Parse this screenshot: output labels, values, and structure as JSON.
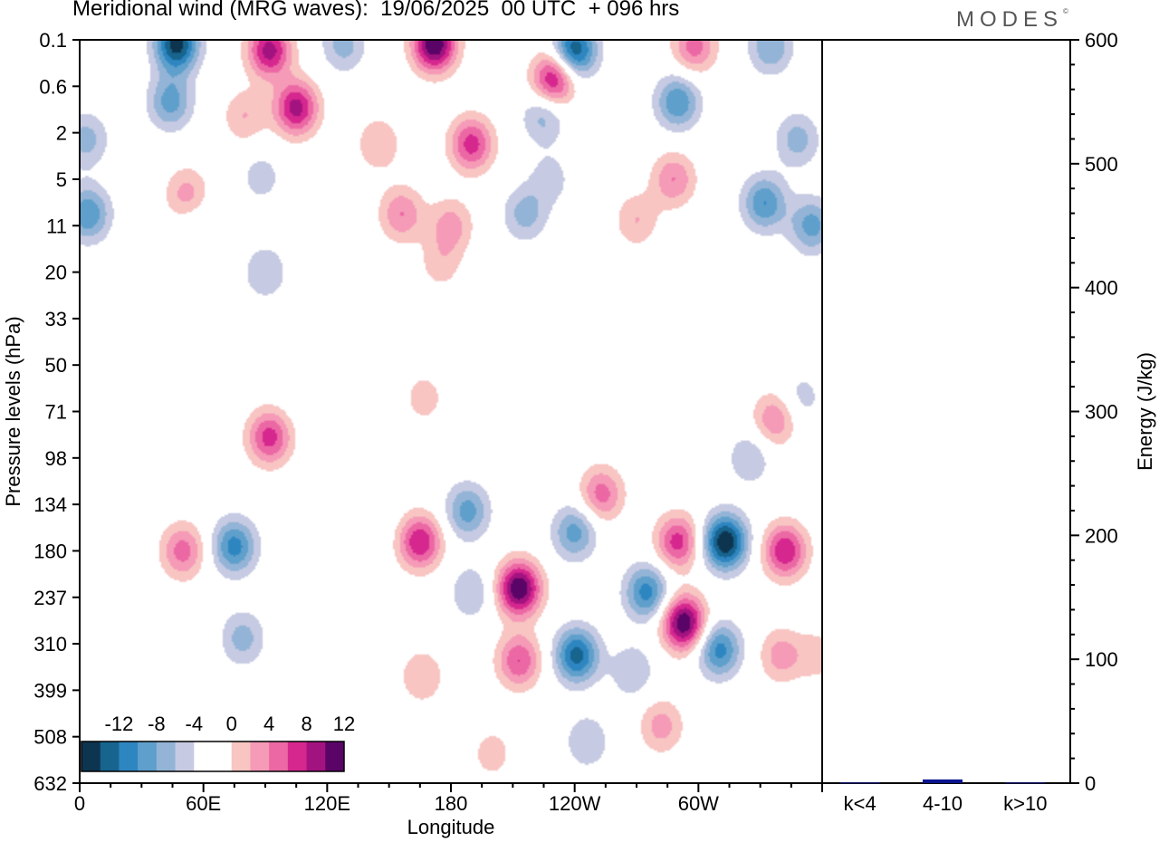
{
  "header": {
    "title": "Meridional wind (MRG waves):  19/06/2025  00 UTC  + 096 hrs",
    "brand": "MODES",
    "brand_mark": "©"
  },
  "chart_data": [
    {
      "type": "heatmap",
      "title": "Meridional wind (MRG waves):  19/06/2025  00 UTC  + 096 hrs",
      "xlabel": "Longitude",
      "ylabel": "Pressure levels (hPa)",
      "x_ticks": [
        "0",
        "60E",
        "120E",
        "180",
        "120W",
        "60W"
      ],
      "x_tick_values": [
        0,
        60,
        120,
        180,
        240,
        300
      ],
      "xlim": [
        0,
        360
      ],
      "y_ticks": [
        "0.1",
        "0.6",
        "2",
        "5",
        "11",
        "20",
        "33",
        "50",
        "71",
        "98",
        "134",
        "180",
        "237",
        "310",
        "399",
        "508",
        "632"
      ],
      "colorbar": {
        "labels": [
          "-12",
          "-8",
          "-4",
          "0",
          "4",
          "8",
          "12"
        ],
        "colors": [
          "#0e3550",
          "#17648f",
          "#2e86c1",
          "#5f9fcc",
          "#93b4d6",
          "#c6cae2",
          "#ffffff",
          "#ffffff",
          "#f8c5c2",
          "#f59ab7",
          "#ec68a4",
          "#d6278f",
          "#a3137f",
          "#5a0467"
        ],
        "location": "lower-left"
      },
      "blobs": [
        {
          "lon": 47,
          "p": 0.12,
          "v": -13
        },
        {
          "lon": 44,
          "p": 0.9,
          "v": -7
        },
        {
          "lon": 3,
          "p": 2.3,
          "v": -5
        },
        {
          "lon": 4,
          "p": 9,
          "v": -8
        },
        {
          "lon": 92,
          "p": 0.15,
          "v": 11
        },
        {
          "lon": 105,
          "p": 1.05,
          "v": 11
        },
        {
          "lon": 80,
          "p": 1.3,
          "v": 4
        },
        {
          "lon": 172,
          "p": 0.12,
          "v": 14
        },
        {
          "lon": 128,
          "p": 0.12,
          "v": -5
        },
        {
          "lon": 190,
          "p": 2.5,
          "v": 9
        },
        {
          "lon": 145,
          "p": 2.5,
          "v": 4
        },
        {
          "lon": 230,
          "p": 0.45,
          "v": 11
        },
        {
          "lon": 240,
          "p": 0.15,
          "v": -12
        },
        {
          "lon": 290,
          "p": 0.9,
          "v": -8
        },
        {
          "lon": 225,
          "p": 1.3,
          "v": -5
        },
        {
          "lon": 298,
          "p": 0.13,
          "v": 7
        },
        {
          "lon": 335,
          "p": 0.13,
          "v": -6
        },
        {
          "lon": 348,
          "p": 2.3,
          "v": -5
        },
        {
          "lon": 288,
          "p": 5,
          "v": 6
        },
        {
          "lon": 332,
          "p": 7.5,
          "v": -8
        },
        {
          "lon": 355,
          "p": 11,
          "v": -7
        },
        {
          "lon": 270,
          "p": 10,
          "v": 4
        },
        {
          "lon": 52,
          "p": 6.5,
          "v": 5
        },
        {
          "lon": 156,
          "p": 9,
          "v": 6
        },
        {
          "lon": 180,
          "p": 11,
          "v": 5
        },
        {
          "lon": 175,
          "p": 18,
          "v": 3
        },
        {
          "lon": 216,
          "p": 9,
          "v": -5
        },
        {
          "lon": 228,
          "p": 5,
          "v": -3
        },
        {
          "lon": 90,
          "p": 20,
          "v": -4
        },
        {
          "lon": 88,
          "p": 4.8,
          "v": -3
        },
        {
          "lon": 58,
          "p": 11,
          "v": -2
        },
        {
          "lon": 337,
          "p": 75,
          "v": 6
        },
        {
          "lon": 325,
          "p": 98,
          "v": -4
        },
        {
          "lon": 350,
          "p": 64,
          "v": -3
        },
        {
          "lon": 167,
          "p": 64,
          "v": 3
        },
        {
          "lon": 92,
          "p": 85,
          "v": 9
        },
        {
          "lon": 112,
          "p": 60,
          "v": -2
        },
        {
          "lon": 50,
          "p": 180,
          "v": 7
        },
        {
          "lon": 75,
          "p": 175,
          "v": -9
        },
        {
          "lon": 79,
          "p": 300,
          "v": -5
        },
        {
          "lon": 50,
          "p": 300,
          "v": 2
        },
        {
          "lon": 165,
          "p": 170,
          "v": 10
        },
        {
          "lon": 166,
          "p": 370,
          "v": 4
        },
        {
          "lon": 188,
          "p": 140,
          "v": -7
        },
        {
          "lon": 190,
          "p": 230,
          "v": -4
        },
        {
          "lon": 213,
          "p": 225,
          "v": 14
        },
        {
          "lon": 213,
          "p": 340,
          "v": 8
        },
        {
          "lon": 240,
          "p": 160,
          "v": -7
        },
        {
          "lon": 241,
          "p": 330,
          "v": -11
        },
        {
          "lon": 246,
          "p": 520,
          "v": -4
        },
        {
          "lon": 253,
          "p": 125,
          "v": 7
        },
        {
          "lon": 275,
          "p": 230,
          "v": -9
        },
        {
          "lon": 268,
          "p": 360,
          "v": -4
        },
        {
          "lon": 293,
          "p": 275,
          "v": 14
        },
        {
          "lon": 290,
          "p": 170,
          "v": 9
        },
        {
          "lon": 282,
          "p": 480,
          "v": 5
        },
        {
          "lon": 313,
          "p": 170,
          "v": -14
        },
        {
          "lon": 310,
          "p": 320,
          "v": -9
        },
        {
          "lon": 342,
          "p": 180,
          "v": 10
        },
        {
          "lon": 340,
          "p": 330,
          "v": 5
        },
        {
          "lon": 358,
          "p": 330,
          "v": 3
        },
        {
          "lon": 20,
          "p": 230,
          "v": -2
        },
        {
          "lon": 25,
          "p": 86,
          "v": -2
        },
        {
          "lon": 113,
          "p": 330,
          "v": -2
        },
        {
          "lon": 140,
          "p": 150,
          "v": -2
        },
        {
          "lon": 200,
          "p": 550,
          "v": 3
        },
        {
          "lon": 55,
          "p": 30,
          "v": 2
        }
      ]
    },
    {
      "type": "bar",
      "categories": [
        "k<4",
        "4-10",
        "k>10"
      ],
      "values": [
        0.5,
        3,
        0.5
      ],
      "ylabel": "Energy (J/kg)",
      "ylim": [
        0,
        600
      ],
      "y_ticks": [
        "0",
        "100",
        "200",
        "300",
        "400",
        "500",
        "600"
      ],
      "bar_color": "#0a1490",
      "y_axis_side": "right"
    }
  ]
}
